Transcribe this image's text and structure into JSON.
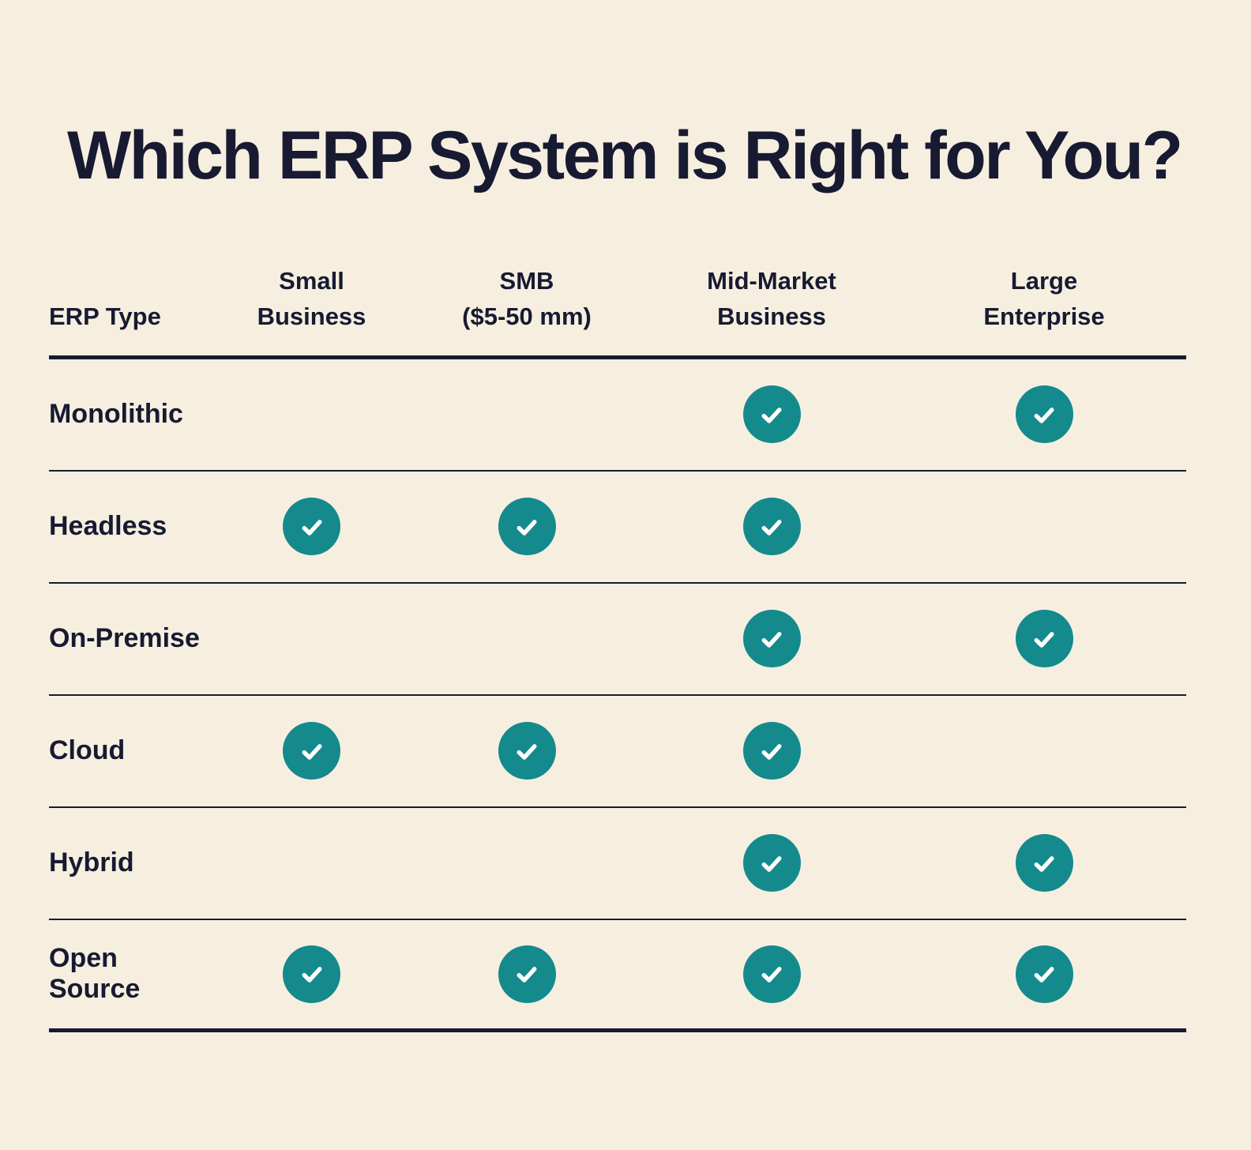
{
  "title": "Which ERP System is Right for You?",
  "colors": {
    "background": "#f6efe0",
    "text": "#171a31",
    "teal": "#148a8d",
    "check": "#ffffff"
  },
  "table": {
    "columns": [
      {
        "label": "ERP Type"
      },
      {
        "label": "Small\nBusiness"
      },
      {
        "label": "SMB\n($5-50 mm)"
      },
      {
        "label": "Mid-Market\nBusiness"
      },
      {
        "label": "Large\nEnterprise"
      }
    ],
    "rows": [
      {
        "label": "Monolithic",
        "checks": [
          false,
          false,
          true,
          true
        ]
      },
      {
        "label": "Headless",
        "checks": [
          true,
          true,
          true,
          false
        ]
      },
      {
        "label": "On-Premise",
        "checks": [
          false,
          false,
          true,
          true
        ]
      },
      {
        "label": "Cloud",
        "checks": [
          true,
          true,
          true,
          false
        ]
      },
      {
        "label": "Hybrid",
        "checks": [
          false,
          false,
          true,
          true
        ]
      },
      {
        "label": "Open Source",
        "checks": [
          true,
          true,
          true,
          true
        ]
      }
    ]
  },
  "chart_data": {
    "type": "table",
    "title": "Which ERP System is Right for You?",
    "columns": [
      "ERP Type",
      "Small Business",
      "SMB ($5-50 mm)",
      "Mid-Market Business",
      "Large Enterprise"
    ],
    "rows": [
      [
        "Monolithic",
        false,
        false,
        true,
        true
      ],
      [
        "Headless",
        true,
        true,
        true,
        false
      ],
      [
        "On-Premise",
        false,
        false,
        true,
        true
      ],
      [
        "Cloud",
        true,
        true,
        true,
        false
      ],
      [
        "Hybrid",
        false,
        false,
        true,
        true
      ],
      [
        "Open Source",
        true,
        true,
        true,
        true
      ]
    ],
    "check_symbol": "✓"
  }
}
